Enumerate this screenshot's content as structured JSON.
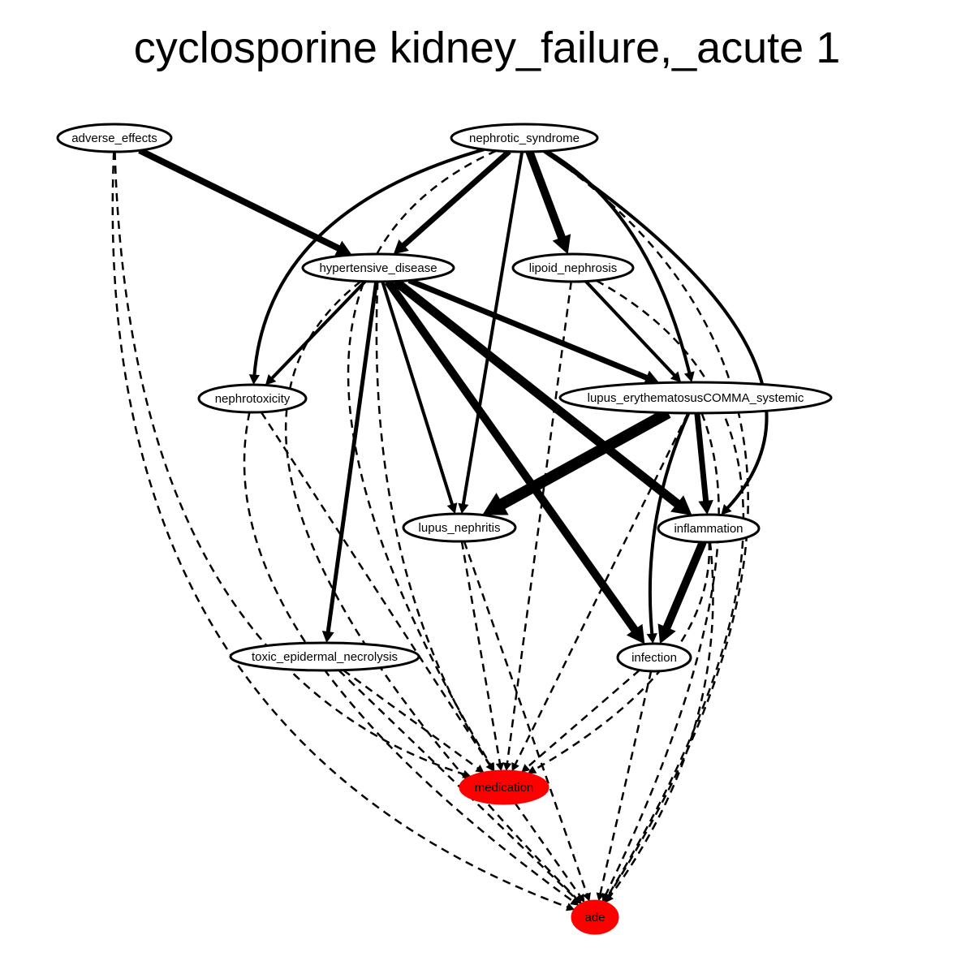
{
  "title": "cyclosporine kidney_failure,_acute 1",
  "colors": {
    "highlight": "#ff0000",
    "stroke": "#000000",
    "background": "#ffffff"
  },
  "nodes": [
    {
      "id": "adverse_effects",
      "label": "adverse_effects",
      "highlight": false
    },
    {
      "id": "nephrotic_syndrome",
      "label": "nephrotic_syndrome",
      "highlight": false
    },
    {
      "id": "hypertensive_disease",
      "label": "hypertensive_disease",
      "highlight": false
    },
    {
      "id": "lipoid_nephrosis",
      "label": "lipoid_nephrosis",
      "highlight": false
    },
    {
      "id": "nephrotoxicity",
      "label": "nephrotoxicity",
      "highlight": false
    },
    {
      "id": "lupus_systemic",
      "label": "lupus_erythematosusCOMMA_systemic",
      "highlight": false
    },
    {
      "id": "lupus_nephritis",
      "label": "lupus_nephritis",
      "highlight": false
    },
    {
      "id": "inflammation",
      "label": "inflammation",
      "highlight": false
    },
    {
      "id": "toxic_epidermal_necrolysis",
      "label": "toxic_epidermal_necrolysis",
      "highlight": false
    },
    {
      "id": "infection",
      "label": "infection",
      "highlight": false
    },
    {
      "id": "medication",
      "label": "medication",
      "highlight": true
    },
    {
      "id": "ade",
      "label": "ade",
      "highlight": true
    }
  ],
  "edges": [
    {
      "from": "adverse_effects",
      "to": "hypertensive_disease",
      "style": "solid",
      "weight": 8
    },
    {
      "from": "nephrotic_syndrome",
      "to": "hypertensive_disease",
      "style": "solid",
      "weight": 7
    },
    {
      "from": "nephrotic_syndrome",
      "to": "lipoid_nephrosis",
      "style": "solid",
      "weight": 10
    },
    {
      "from": "nephrotic_syndrome",
      "to": "nephrotoxicity",
      "style": "solid",
      "weight": 4
    },
    {
      "from": "nephrotic_syndrome",
      "to": "lupus_nephritis",
      "style": "solid",
      "weight": 4
    },
    {
      "from": "nephrotic_syndrome",
      "to": "lupus_systemic",
      "style": "solid",
      "weight": 4
    },
    {
      "from": "nephrotic_syndrome",
      "to": "inflammation",
      "style": "solid",
      "weight": 4
    },
    {
      "from": "hypertensive_disease",
      "to": "nephrotoxicity",
      "style": "solid",
      "weight": 4
    },
    {
      "from": "hypertensive_disease",
      "to": "lupus_systemic",
      "style": "solid",
      "weight": 7
    },
    {
      "from": "hypertensive_disease",
      "to": "lupus_nephritis",
      "style": "solid",
      "weight": 4
    },
    {
      "from": "hypertensive_disease",
      "to": "inflammation",
      "style": "solid",
      "weight": 11
    },
    {
      "from": "hypertensive_disease",
      "to": "infection",
      "style": "solid",
      "weight": 10
    },
    {
      "from": "hypertensive_disease",
      "to": "toxic_epidermal_necrolysis",
      "style": "solid",
      "weight": 5
    },
    {
      "from": "lipoid_nephrosis",
      "to": "lupus_systemic",
      "style": "solid",
      "weight": 4
    },
    {
      "from": "lupus_systemic",
      "to": "lupus_nephritis",
      "style": "solid",
      "weight": 14
    },
    {
      "from": "lupus_systemic",
      "to": "inflammation",
      "style": "solid",
      "weight": 7
    },
    {
      "from": "lupus_systemic",
      "to": "infection",
      "style": "solid",
      "weight": 4
    },
    {
      "from": "inflammation",
      "to": "infection",
      "style": "solid",
      "weight": 10
    },
    {
      "from": "adverse_effects",
      "to": "medication",
      "style": "dashed",
      "weight": 2.5
    },
    {
      "from": "adverse_effects",
      "to": "ade",
      "style": "dashed",
      "weight": 2.5
    },
    {
      "from": "nephrotic_syndrome",
      "to": "medication",
      "style": "dashed",
      "weight": 2.5
    },
    {
      "from": "nephrotic_syndrome",
      "to": "ade",
      "style": "dashed",
      "weight": 2.5
    },
    {
      "from": "hypertensive_disease",
      "to": "medication",
      "style": "dashed",
      "weight": 2.5
    },
    {
      "from": "hypertensive_disease",
      "to": "ade",
      "style": "dashed",
      "weight": 2.5
    },
    {
      "from": "lipoid_nephrosis",
      "to": "medication",
      "style": "dashed",
      "weight": 2.5
    },
    {
      "from": "lipoid_nephrosis",
      "to": "ade",
      "style": "dashed",
      "weight": 2.5
    },
    {
      "from": "nephrotoxicity",
      "to": "medication",
      "style": "dashed",
      "weight": 2.5
    },
    {
      "from": "nephrotoxicity",
      "to": "ade",
      "style": "dashed",
      "weight": 2.5
    },
    {
      "from": "lupus_systemic",
      "to": "medication",
      "style": "dashed",
      "weight": 2.5
    },
    {
      "from": "lupus_systemic",
      "to": "ade",
      "style": "dashed",
      "weight": 2.5
    },
    {
      "from": "lupus_nephritis",
      "to": "medication",
      "style": "dashed",
      "weight": 2.5
    },
    {
      "from": "lupus_nephritis",
      "to": "ade",
      "style": "dashed",
      "weight": 2.5
    },
    {
      "from": "inflammation",
      "to": "medication",
      "style": "dashed",
      "weight": 2.5
    },
    {
      "from": "inflammation",
      "to": "ade",
      "style": "dashed",
      "weight": 2.5
    },
    {
      "from": "toxic_epidermal_necrolysis",
      "to": "medication",
      "style": "dashed",
      "weight": 2.5
    },
    {
      "from": "toxic_epidermal_necrolysis",
      "to": "ade",
      "style": "dashed",
      "weight": 2.5
    },
    {
      "from": "infection",
      "to": "medication",
      "style": "dashed",
      "weight": 2.5
    },
    {
      "from": "infection",
      "to": "ade",
      "style": "dashed",
      "weight": 2.5
    },
    {
      "from": "medication",
      "to": "ade",
      "style": "dashed",
      "weight": 2.5
    }
  ]
}
